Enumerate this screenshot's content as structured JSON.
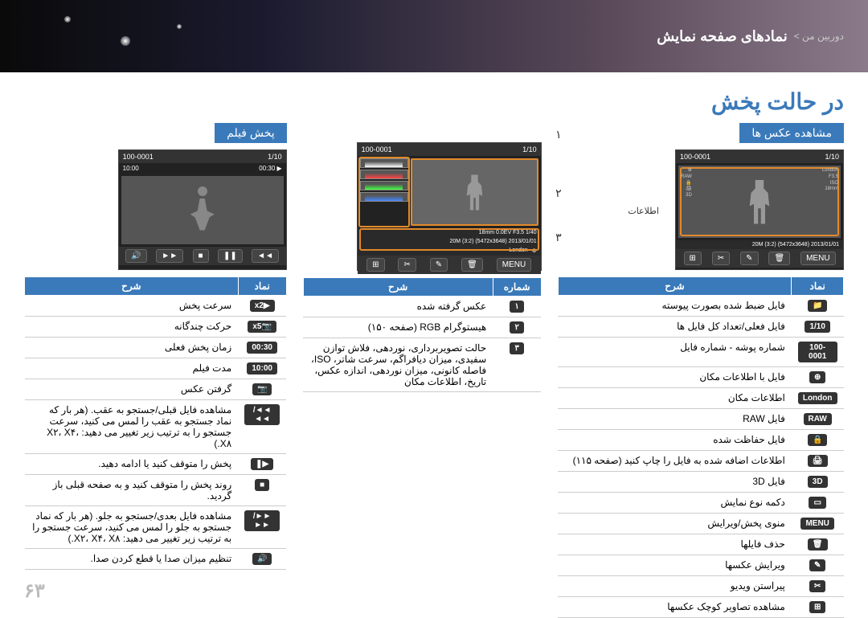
{
  "header": {
    "title": "نمادهای صفحه نمایش",
    "breadcrumb": "دوربین من >"
  },
  "mainTitle": "در حالت پخش",
  "pageNumber": "۶۳",
  "calloutNumbers": [
    "۱",
    "۲",
    "۳"
  ],
  "infoLabel": "اطلاعات",
  "photoSection": {
    "title": "مشاهده عکس ها",
    "screen": {
      "counter": "1/10",
      "fileNum": "100-0001",
      "location": "London",
      "menu": "MENU",
      "meta": "20M (3:2) (5472x3648)  2013/01/01",
      "meta2": "18mm  F3.5  ISO"
    },
    "headers": {
      "icon": "نماد",
      "desc": "شرح"
    },
    "rows": [
      {
        "icon": "📁",
        "desc": "فایل ضبط شده بصورت پیوسته"
      },
      {
        "icon": "1/10",
        "desc": "فایل فعلی/تعداد کل فایل ها"
      },
      {
        "icon": "100-0001",
        "desc": "شماره پوشه - شماره فایل"
      },
      {
        "icon": "⊕",
        "desc": "فایل با اطلاعات مکان"
      },
      {
        "icon": "London",
        "desc": "اطلاعات مکان"
      },
      {
        "icon": "RAW",
        "desc": "فایل RAW"
      },
      {
        "icon": "🔒",
        "desc": "فایل حفاظت شده"
      },
      {
        "icon": "🖨",
        "desc": "اطلاعات اضافه شده به فایل را چاپ کنید (صفحه ۱۱۵)"
      },
      {
        "icon": "3D",
        "desc": "فایل 3D"
      },
      {
        "icon": "▭",
        "desc": "دکمه نوع نمایش"
      },
      {
        "icon": "MENU",
        "desc": "منوی پخش/ویرایش"
      },
      {
        "icon": "🗑",
        "desc": "حذف فایلها"
      },
      {
        "icon": "✎",
        "desc": "ویرایش عکسها"
      },
      {
        "icon": "✂",
        "desc": "پیراستن ویدیو"
      },
      {
        "icon": "⊞",
        "desc": "مشاهده تصاویر کوچک عکسها"
      }
    ]
  },
  "middleSection": {
    "screen": {
      "counter": "1/10",
      "fileNum": "100-0001",
      "menu": "MENU",
      "meta1": "18mm  0.0EV  F3.5  1/40",
      "meta2": "20M (3:2) (5472x3648)  2013/01/01",
      "location": "London"
    },
    "headers": {
      "num": "شماره",
      "desc": "شرح"
    },
    "rows": [
      {
        "num": "۱",
        "desc": "عکس گرفته شده"
      },
      {
        "num": "۲",
        "desc": "هیستوگرام RGB (صفحه ۱۵۰)"
      },
      {
        "num": "۳",
        "desc": "حالت تصویربرداری، نوردهی، فلاش توازن سفیدی، میزان دیافراگم، سرعت شاتر، ISO، فاصله کانونی، میزان نوردهی، اندازه عکس، تاریخ، اطلاعات مکان"
      }
    ]
  },
  "videoSection": {
    "title": "پخش فیلم",
    "screen": {
      "counter": "1/10",
      "fileNum": "100-0001",
      "time1": "00:30",
      "time2": "10:00"
    },
    "headers": {
      "icon": "نماد",
      "desc": "شرح"
    },
    "rows": [
      {
        "icon": "▶x2",
        "desc": "سرعت پخش"
      },
      {
        "icon": "📷x5",
        "desc": "حرکت چندگانه"
      },
      {
        "icon": "00:30",
        "desc": "زمان پخش فعلی"
      },
      {
        "icon": "10:00",
        "desc": "مدت فیلم"
      },
      {
        "icon": "📷",
        "desc": "گرفتن عکس"
      },
      {
        "icon": "◄◄/◄◄",
        "desc": "مشاهده فایل قبلی/جستجو به عقب. (هر بار که نماد جستجو به عقب را لمس می کنید، سرعت جستجو را به ترتیب زیر تغییر می دهید: X۲، X۴، X۸.)"
      },
      {
        "icon": "▶❚",
        "desc": "پخش را متوقف کنید یا ادامه دهید."
      },
      {
        "icon": "■",
        "desc": "روند پخش را متوقف کنید و به صفحه قبلی باز گردید."
      },
      {
        "icon": "►►/►►",
        "desc": "مشاهده فایل بعدی/جستجو به جلو. (هر بار که نماد جستجو به جلو را لمس می کنید، سرعت جستجو را به ترتیب زیر تغییر می دهید: X۲، X۴، X۸.)"
      },
      {
        "icon": "🔊",
        "desc": "تنظیم میزان صدا یا قطع کردن صدا."
      }
    ]
  }
}
